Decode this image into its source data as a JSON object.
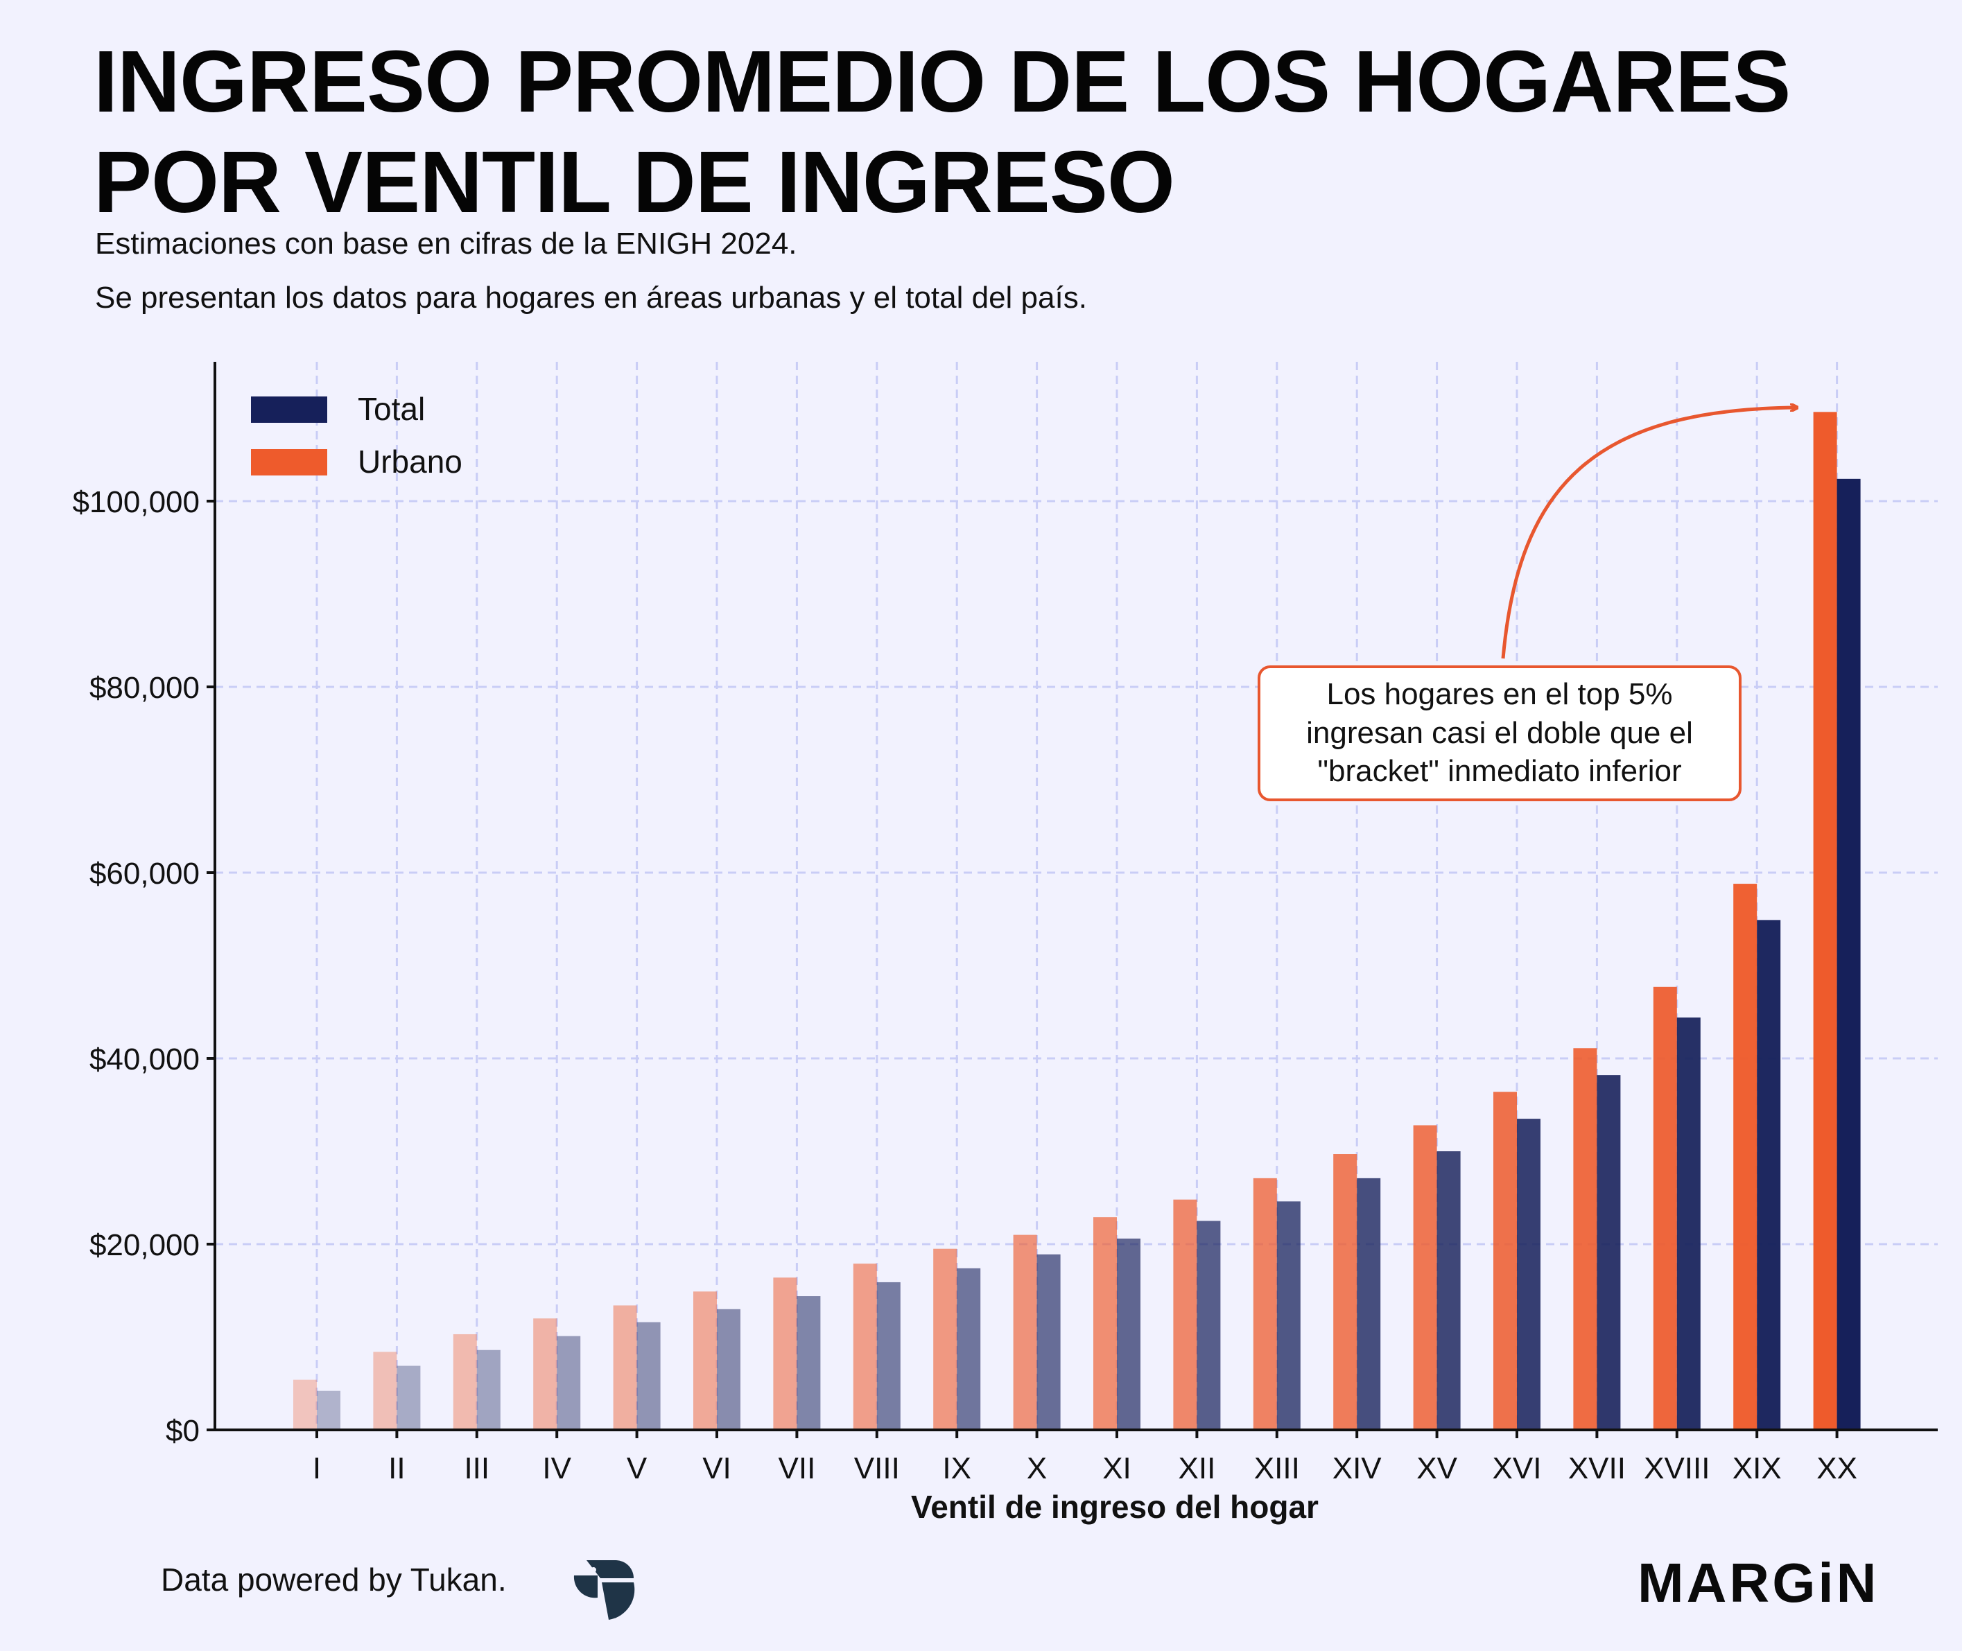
{
  "header": {
    "title_line1": "INGRESO PROMEDIO DE LOS HOGARES",
    "title_line2": "POR VENTIL DE INGRESO",
    "subtitle_line1": "Estimaciones con base en cifras de la ENIGH 2024.",
    "subtitle_line2": "Se presentan los datos para hogares en áreas urbanas y el total del país."
  },
  "footer": {
    "credit": "Data powered by Tukan.",
    "logo_text": "MARGiN",
    "tukan_logo_icon": "tukan-bird-logo"
  },
  "chart_data": {
    "type": "bar",
    "xlabel": "Ventil de ingreso del hogar",
    "ylabel": "",
    "ylim": [
      0,
      115000
    ],
    "yticks": [
      0,
      20000,
      40000,
      60000,
      80000,
      100000
    ],
    "ytick_labels": [
      "$0",
      "$20,000",
      "$40,000",
      "$60,000",
      "$80,000",
      "$100,000"
    ],
    "grid": true,
    "legend_position": "top-left",
    "categories": [
      "I",
      "II",
      "III",
      "IV",
      "V",
      "VI",
      "VII",
      "VIII",
      "IX",
      "X",
      "XI",
      "XII",
      "XIII",
      "XIV",
      "XV",
      "XVI",
      "XVII",
      "XVIII",
      "XIX",
      "XX"
    ],
    "series": [
      {
        "name": "Urbano",
        "color": "#ee5b2c",
        "values": [
          5400,
          8400,
          10300,
          12000,
          13400,
          14900,
          16400,
          17900,
          19500,
          21000,
          22900,
          24800,
          27100,
          29700,
          32800,
          36400,
          41100,
          47700,
          58800,
          109600
        ]
      },
      {
        "name": "Total",
        "color": "#16205a",
        "values": [
          4200,
          6900,
          8600,
          10100,
          11600,
          13000,
          14400,
          15900,
          17400,
          18900,
          20600,
          22500,
          24600,
          27100,
          30000,
          33500,
          38200,
          44400,
          54900,
          102400
        ]
      }
    ],
    "annotation": {
      "text_lines": [
        "Los hogares en el top 5%",
        "ingresan casi el doble que el",
        "\"bracket\" inmediato inferior"
      ]
    }
  }
}
